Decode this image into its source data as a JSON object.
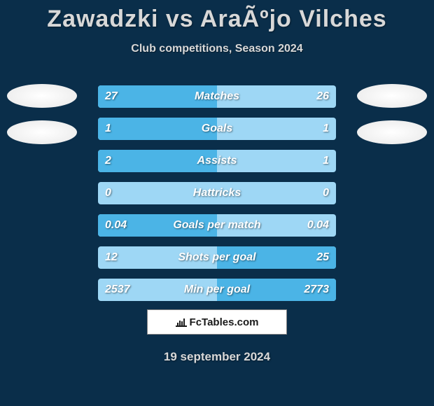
{
  "background_color": "#0a2e4a",
  "title": "Zawadzki vs AraÃºjo Vilches",
  "title_fontsize": 34,
  "title_color": "#d8d8d8",
  "subtitle": "Club competitions, Season 2024",
  "subtitle_fontsize": 16,
  "subtitle_color": "#d8d8d8",
  "chart": {
    "type": "comparison-bars",
    "bar_bg_color": "#9ed7f5",
    "bar_fill_color": "#4bb4e6",
    "text_color": "#ffffff",
    "label_fontsize": 16,
    "photo_placeholder_color": "#ffffff",
    "rows": [
      {
        "label": "Matches",
        "left": "27",
        "right": "26",
        "left_pct": 50,
        "right_pct": 0
      },
      {
        "label": "Goals",
        "left": "1",
        "right": "1",
        "left_pct": 50,
        "right_pct": 0
      },
      {
        "label": "Assists",
        "left": "2",
        "right": "1",
        "left_pct": 50,
        "right_pct": 0
      },
      {
        "label": "Hattricks",
        "left": "0",
        "right": "0",
        "left_pct": 0,
        "right_pct": 0
      },
      {
        "label": "Goals per match",
        "left": "0.04",
        "right": "0.04",
        "left_pct": 50,
        "right_pct": 0
      },
      {
        "label": "Shots per goal",
        "left": "12",
        "right": "25",
        "left_pct": 0,
        "right_pct": 50
      },
      {
        "label": "Min per goal",
        "left": "2537",
        "right": "2773",
        "left_pct": 0,
        "right_pct": 50
      }
    ]
  },
  "logo_text": "FcTables.com",
  "date": "19 september 2024"
}
